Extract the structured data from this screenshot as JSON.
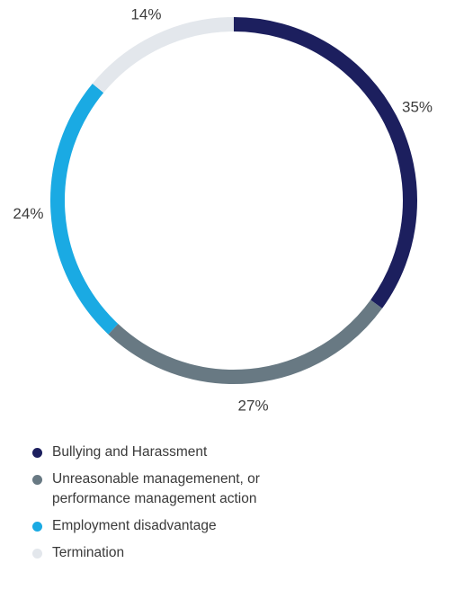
{
  "chart_data": {
    "type": "pie",
    "donut": true,
    "legend_position": "bottom-left",
    "slices": [
      {
        "label": "Bullying and Harassment",
        "value": 35,
        "display": "35%",
        "color": "#1c1f5e"
      },
      {
        "label": "Unreasonable managemenent, or performance management action",
        "value": 27,
        "display": "27%",
        "color": "#687983"
      },
      {
        "label": "Employment disadvantage",
        "value": 24,
        "display": "24%",
        "color": "#1aaae3"
      },
      {
        "label": "Termination",
        "value": 14,
        "display": "14%",
        "color": "#e3e7ec"
      }
    ]
  }
}
